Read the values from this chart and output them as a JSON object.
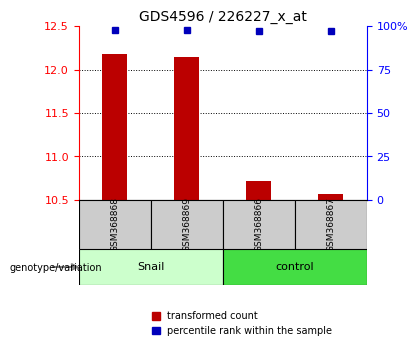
{
  "title": "GDS4596 / 226227_x_at",
  "samples": [
    "GSM368868",
    "GSM368869",
    "GSM368866",
    "GSM368867"
  ],
  "transformed_counts": [
    12.18,
    12.15,
    10.72,
    10.57
  ],
  "percentile_ranks": [
    98,
    98,
    97,
    97
  ],
  "bar_color": "#BB0000",
  "dot_color": "#0000BB",
  "ylim": [
    10.5,
    12.5
  ],
  "yticks": [
    10.5,
    11.0,
    11.5,
    12.0,
    12.5
  ],
  "right_yticks": [
    0,
    25,
    50,
    75,
    100
  ],
  "legend_red": "transformed count",
  "legend_blue": "percentile rank within the sample",
  "snail_color": "#CCFFCC",
  "control_color": "#44DD44"
}
